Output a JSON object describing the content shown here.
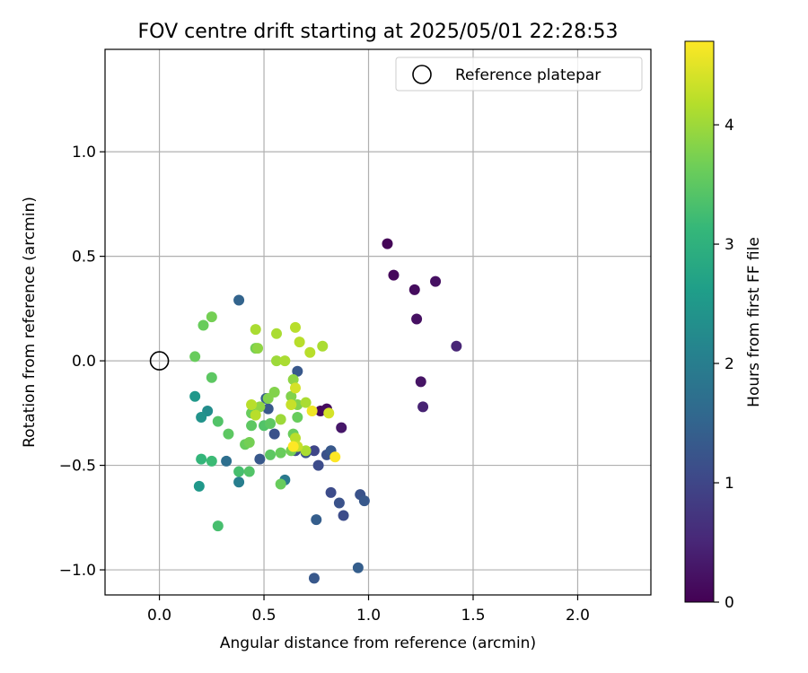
{
  "chart_data": {
    "type": "scatter",
    "title": "FOV centre drift starting at 2025/05/01 22:28:53",
    "xlabel": "Angular distance from reference (arcmin)",
    "ylabel": "Rotation from reference (arcmin)",
    "xlim": [
      -0.26,
      2.35
    ],
    "ylim": [
      -1.12,
      1.49
    ],
    "xticks": [
      0.0,
      0.5,
      1.0,
      1.5,
      2.0
    ],
    "xtick_labels": [
      "0.0",
      "0.5",
      "1.0",
      "1.5",
      "2.0"
    ],
    "yticks": [
      -1.0,
      -0.5,
      0.0,
      0.5,
      1.0
    ],
    "ytick_labels": [
      "−1.0",
      "−0.5",
      "0.0",
      "0.5",
      "1.0"
    ],
    "grid": true,
    "legend": {
      "placement": "top-right",
      "entries": [
        {
          "label": "Reference platepar",
          "marker": "open-circle"
        }
      ]
    },
    "reference_point": {
      "x": 0.0,
      "y": 0.0
    },
    "colorbar": {
      "label": "Hours from first FF file",
      "colormap": "viridis",
      "range": [
        0,
        4.7
      ],
      "ticks": [
        0,
        1,
        2,
        3,
        4
      ],
      "tick_labels": [
        "0",
        "1",
        "2",
        "3",
        "4"
      ]
    },
    "points": [
      {
        "x": 1.09,
        "y": 0.56,
        "c": 0.05
      },
      {
        "x": 1.12,
        "y": 0.41,
        "c": 0.1
      },
      {
        "x": 1.22,
        "y": 0.34,
        "c": 0.15
      },
      {
        "x": 1.32,
        "y": 0.38,
        "c": 0.2
      },
      {
        "x": 1.23,
        "y": 0.2,
        "c": 0.2
      },
      {
        "x": 1.25,
        "y": -0.1,
        "c": 0.25
      },
      {
        "x": 1.26,
        "y": -0.22,
        "c": 0.45
      },
      {
        "x": 1.42,
        "y": 0.07,
        "c": 0.5
      },
      {
        "x": 0.87,
        "y": -0.32,
        "c": 0.3
      },
      {
        "x": 0.77,
        "y": -0.24,
        "c": 0.1
      },
      {
        "x": 0.8,
        "y": -0.23,
        "c": 0.15
      },
      {
        "x": 0.38,
        "y": 0.29,
        "c": 1.5
      },
      {
        "x": 0.66,
        "y": -0.05,
        "c": 1.3
      },
      {
        "x": 0.51,
        "y": -0.18,
        "c": 1.4
      },
      {
        "x": 0.52,
        "y": -0.23,
        "c": 1.3
      },
      {
        "x": 0.55,
        "y": -0.35,
        "c": 1.2
      },
      {
        "x": 0.48,
        "y": -0.47,
        "c": 1.3
      },
      {
        "x": 0.65,
        "y": -0.43,
        "c": 1.1
      },
      {
        "x": 0.7,
        "y": -0.44,
        "c": 1.2
      },
      {
        "x": 0.74,
        "y": -0.43,
        "c": 1.0
      },
      {
        "x": 0.76,
        "y": -0.5,
        "c": 1.1
      },
      {
        "x": 0.8,
        "y": -0.45,
        "c": 1.2
      },
      {
        "x": 0.82,
        "y": -0.43,
        "c": 1.3
      },
      {
        "x": 0.82,
        "y": -0.63,
        "c": 1.1
      },
      {
        "x": 0.86,
        "y": -0.68,
        "c": 1.2
      },
      {
        "x": 0.88,
        "y": -0.74,
        "c": 1.1
      },
      {
        "x": 0.96,
        "y": -0.64,
        "c": 1.2
      },
      {
        "x": 0.98,
        "y": -0.67,
        "c": 1.3
      },
      {
        "x": 0.95,
        "y": -0.99,
        "c": 1.4
      },
      {
        "x": 0.74,
        "y": -1.04,
        "c": 1.3
      },
      {
        "x": 0.75,
        "y": -0.76,
        "c": 1.4
      },
      {
        "x": 0.6,
        "y": -0.57,
        "c": 1.9
      },
      {
        "x": 0.32,
        "y": -0.48,
        "c": 1.7
      },
      {
        "x": 0.38,
        "y": -0.58,
        "c": 2.0
      },
      {
        "x": 0.17,
        "y": -0.17,
        "c": 2.5
      },
      {
        "x": 0.2,
        "y": -0.27,
        "c": 2.4
      },
      {
        "x": 0.23,
        "y": -0.24,
        "c": 2.3
      },
      {
        "x": 0.19,
        "y": -0.6,
        "c": 2.5
      },
      {
        "x": 0.2,
        "y": -0.47,
        "c": 3.1
      },
      {
        "x": 0.25,
        "y": -0.48,
        "c": 3.2
      },
      {
        "x": 0.28,
        "y": -0.79,
        "c": 3.3
      },
      {
        "x": 0.28,
        "y": -0.29,
        "c": 3.4
      },
      {
        "x": 0.33,
        "y": -0.35,
        "c": 3.5
      },
      {
        "x": 0.25,
        "y": -0.08,
        "c": 3.5
      },
      {
        "x": 0.17,
        "y": 0.02,
        "c": 3.6
      },
      {
        "x": 0.21,
        "y": 0.17,
        "c": 3.6
      },
      {
        "x": 0.25,
        "y": 0.21,
        "c": 3.7
      },
      {
        "x": 0.38,
        "y": -0.53,
        "c": 3.3
      },
      {
        "x": 0.43,
        "y": -0.53,
        "c": 3.4
      },
      {
        "x": 0.41,
        "y": -0.4,
        "c": 3.6
      },
      {
        "x": 0.43,
        "y": -0.39,
        "c": 3.7
      },
      {
        "x": 0.44,
        "y": -0.31,
        "c": 3.5
      },
      {
        "x": 0.44,
        "y": -0.25,
        "c": 3.6
      },
      {
        "x": 0.5,
        "y": -0.31,
        "c": 3.4
      },
      {
        "x": 0.53,
        "y": -0.3,
        "c": 3.5
      },
      {
        "x": 0.53,
        "y": -0.45,
        "c": 3.5
      },
      {
        "x": 0.58,
        "y": -0.44,
        "c": 3.6
      },
      {
        "x": 0.58,
        "y": -0.59,
        "c": 3.6
      },
      {
        "x": 0.63,
        "y": -0.43,
        "c": 3.7
      },
      {
        "x": 0.64,
        "y": -0.35,
        "c": 3.6
      },
      {
        "x": 0.66,
        "y": -0.27,
        "c": 3.6
      },
      {
        "x": 0.66,
        "y": -0.21,
        "c": 3.8
      },
      {
        "x": 0.63,
        "y": -0.17,
        "c": 3.8
      },
      {
        "x": 0.64,
        "y": -0.09,
        "c": 3.9
      },
      {
        "x": 0.55,
        "y": -0.15,
        "c": 3.8
      },
      {
        "x": 0.52,
        "y": -0.18,
        "c": 3.8
      },
      {
        "x": 0.48,
        "y": -0.22,
        "c": 3.9
      },
      {
        "x": 0.46,
        "y": 0.06,
        "c": 3.7
      },
      {
        "x": 0.47,
        "y": 0.06,
        "c": 3.9
      },
      {
        "x": 0.46,
        "y": 0.15,
        "c": 4.1
      },
      {
        "x": 0.56,
        "y": 0.13,
        "c": 4.1
      },
      {
        "x": 0.56,
        "y": 0.0,
        "c": 4.0
      },
      {
        "x": 0.6,
        "y": 0.0,
        "c": 4.1
      },
      {
        "x": 0.65,
        "y": 0.16,
        "c": 4.2
      },
      {
        "x": 0.67,
        "y": 0.09,
        "c": 4.2
      },
      {
        "x": 0.72,
        "y": 0.04,
        "c": 4.2
      },
      {
        "x": 0.78,
        "y": 0.07,
        "c": 4.1
      },
      {
        "x": 0.44,
        "y": -0.21,
        "c": 4.2
      },
      {
        "x": 0.46,
        "y": -0.26,
        "c": 4.2
      },
      {
        "x": 0.58,
        "y": -0.28,
        "c": 4.0
      },
      {
        "x": 0.63,
        "y": -0.21,
        "c": 4.3
      },
      {
        "x": 0.65,
        "y": -0.13,
        "c": 4.4
      },
      {
        "x": 0.7,
        "y": -0.2,
        "c": 4.1
      },
      {
        "x": 0.65,
        "y": -0.37,
        "c": 4.2
      },
      {
        "x": 0.66,
        "y": -0.41,
        "c": 4.3
      },
      {
        "x": 0.7,
        "y": -0.43,
        "c": 4.1
      },
      {
        "x": 0.73,
        "y": -0.24,
        "c": 4.6
      },
      {
        "x": 0.81,
        "y": -0.25,
        "c": 4.4
      },
      {
        "x": 0.84,
        "y": -0.46,
        "c": 4.7
      },
      {
        "x": 0.64,
        "y": -0.41,
        "c": 4.7
      }
    ]
  }
}
